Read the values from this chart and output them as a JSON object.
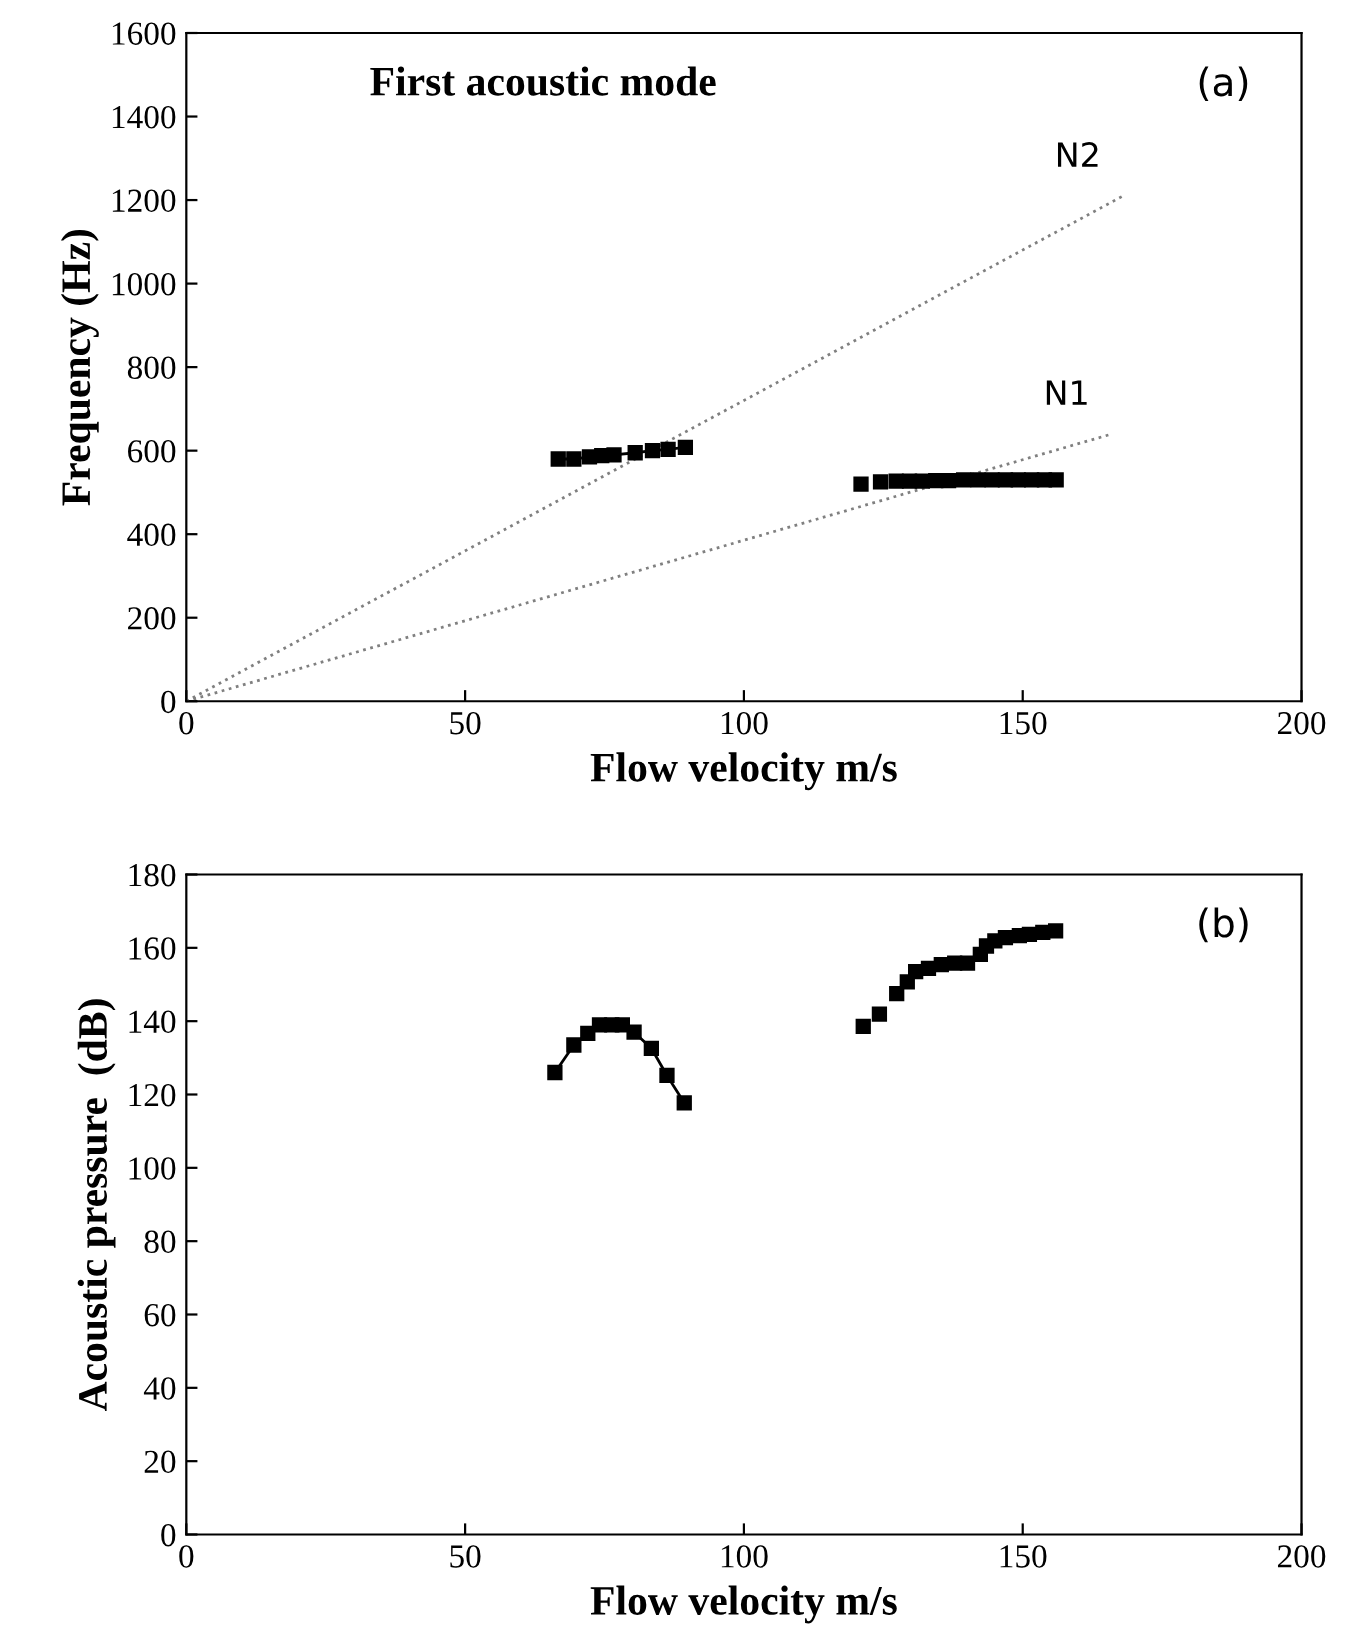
{
  "chart_data": [
    {
      "type": "line",
      "title": "First acoustic mode",
      "xlabel": "Flow velocity m/s",
      "ylabel": "Frequency (Hz)",
      "xlim": [
        0,
        200
      ],
      "xticks": [
        0,
        50,
        100,
        150,
        200
      ],
      "ylim": [
        0,
        1600
      ],
      "yticks": [
        0,
        200,
        400,
        600,
        800,
        1000,
        1200,
        1400,
        1600
      ],
      "grid": false,
      "legend": false,
      "annotations": [
        "(a)"
      ],
      "series": [
        {
          "name": "N2",
          "type": "line",
          "color": "#808080",
          "line_style": "dotted",
          "marker": "none",
          "x": [
            0,
            168
          ],
          "values": [
            0,
            1210
          ]
        },
        {
          "name": "N1",
          "type": "line",
          "color": "#808080",
          "line_style": "dotted",
          "marker": "none",
          "x": [
            0,
            166
          ],
          "values": [
            0,
            640
          ]
        },
        {
          "type": "line",
          "color": "#000000",
          "marker": "square",
          "line_style": "solid",
          "x": [
            66.7,
            69.5,
            72.3,
            74.5,
            76.7,
            80.5,
            83.6,
            86.4,
            89.5
          ],
          "values": [
            580,
            580,
            585,
            588,
            590,
            595,
            600,
            603,
            608
          ]
        },
        {
          "type": "scatter",
          "color": "#000000",
          "marker": "square",
          "x": [
            121,
            124.5,
            127.3,
            129.7,
            132,
            134.4,
            136.7,
            139.4,
            142,
            144.5,
            146.9,
            149.2,
            151.6,
            153.9,
            156
          ],
          "values": [
            520,
            525,
            527,
            527,
            527,
            528,
            528,
            530,
            530,
            530,
            530,
            530,
            530,
            530,
            530
          ]
        }
      ]
    },
    {
      "type": "line",
      "xlabel": "Flow velocity m/s",
      "ylabel": "Acoustic pressure  (dB)",
      "xlim": [
        0,
        200
      ],
      "xticks": [
        0,
        50,
        100,
        150,
        200
      ],
      "ylim": [
        0,
        180
      ],
      "yticks": [
        0,
        20,
        40,
        60,
        80,
        100,
        120,
        140,
        160,
        180
      ],
      "grid": false,
      "legend": false,
      "annotations": [
        "(b)"
      ],
      "series": [
        {
          "type": "line",
          "color": "#000000",
          "marker": "square",
          "line_style": "solid",
          "x": [
            66.1,
            69.5,
            72,
            74.1,
            76.3,
            78.2,
            80.3,
            83.4,
            86.2,
            89.3
          ],
          "values": [
            126,
            133.5,
            136.7,
            139,
            139,
            139,
            137,
            132.6,
            125.2,
            117.7
          ]
        },
        {
          "type": "scatter",
          "color": "#000000",
          "marker": "square",
          "x": [
            121.4,
            124.3,
            127.4,
            129.3,
            130.8,
            133.1,
            135.4,
            137.8,
            140.1,
            142.4,
            143.5,
            145,
            146.9,
            149.4,
            151.2,
            153.6,
            155.9
          ],
          "values": [
            138.6,
            141.9,
            147.5,
            150.7,
            153.5,
            154.4,
            155.4,
            155.8,
            155.8,
            158.2,
            160.5,
            161.9,
            162.8,
            163.3,
            163.7,
            164.2,
            164.6
          ]
        }
      ]
    }
  ]
}
